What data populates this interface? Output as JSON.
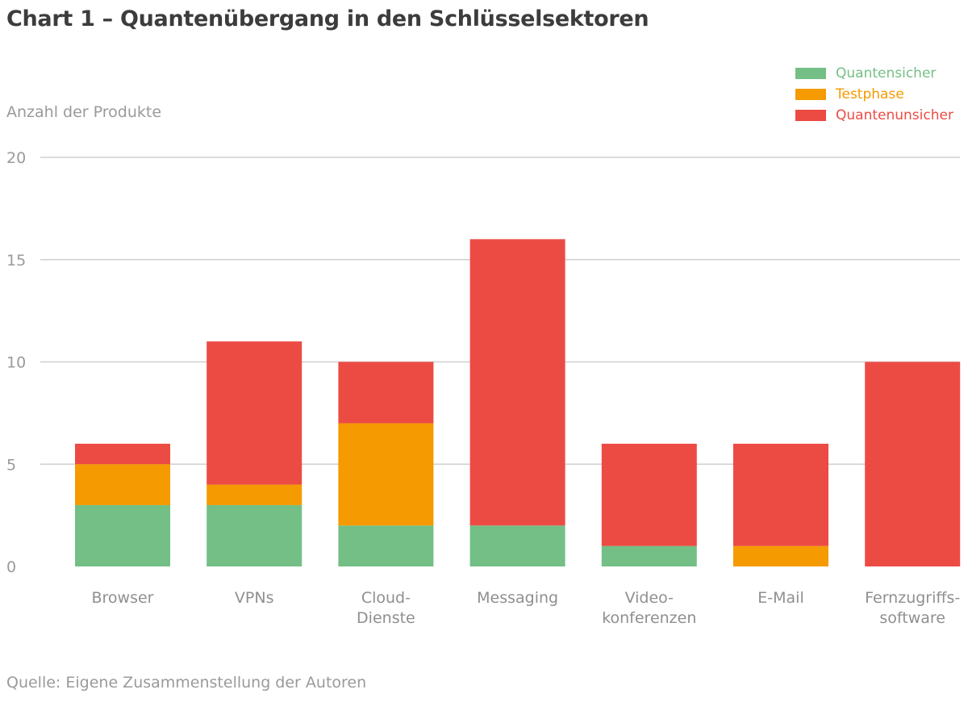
{
  "chart_data": {
    "type": "bar",
    "stacked": true,
    "title": "Chart 1 – Quantenübergang in den Schlüsselsektoren",
    "ylabel": "Anzahl der Produkte",
    "xlabel": "",
    "source": "Quelle: Eigene Zusammenstellung der Autoren",
    "ylim": [
      0,
      20
    ],
    "yticks": [
      0,
      5,
      10,
      15,
      20
    ],
    "grid": true,
    "legend_position": "top-right",
    "categories": [
      [
        "Browser"
      ],
      [
        "VPNs"
      ],
      [
        "Cloud-",
        "Dienste"
      ],
      [
        "Messaging"
      ],
      [
        "Video-",
        "konferenzen"
      ],
      [
        "E-Mail"
      ],
      [
        "Fernzugriffs-",
        "software"
      ]
    ],
    "series": [
      {
        "name": "Quantensicher",
        "color": "#73bf85",
        "values": [
          3,
          3,
          2,
          2,
          1,
          0,
          0
        ]
      },
      {
        "name": "Testphase",
        "color": "#f59a00",
        "values": [
          2,
          1,
          5,
          0,
          0,
          1,
          0
        ]
      },
      {
        "name": "Quantenunsicher",
        "color": "#ec4b44",
        "values": [
          1,
          7,
          3,
          14,
          5,
          5,
          10
        ]
      }
    ]
  }
}
